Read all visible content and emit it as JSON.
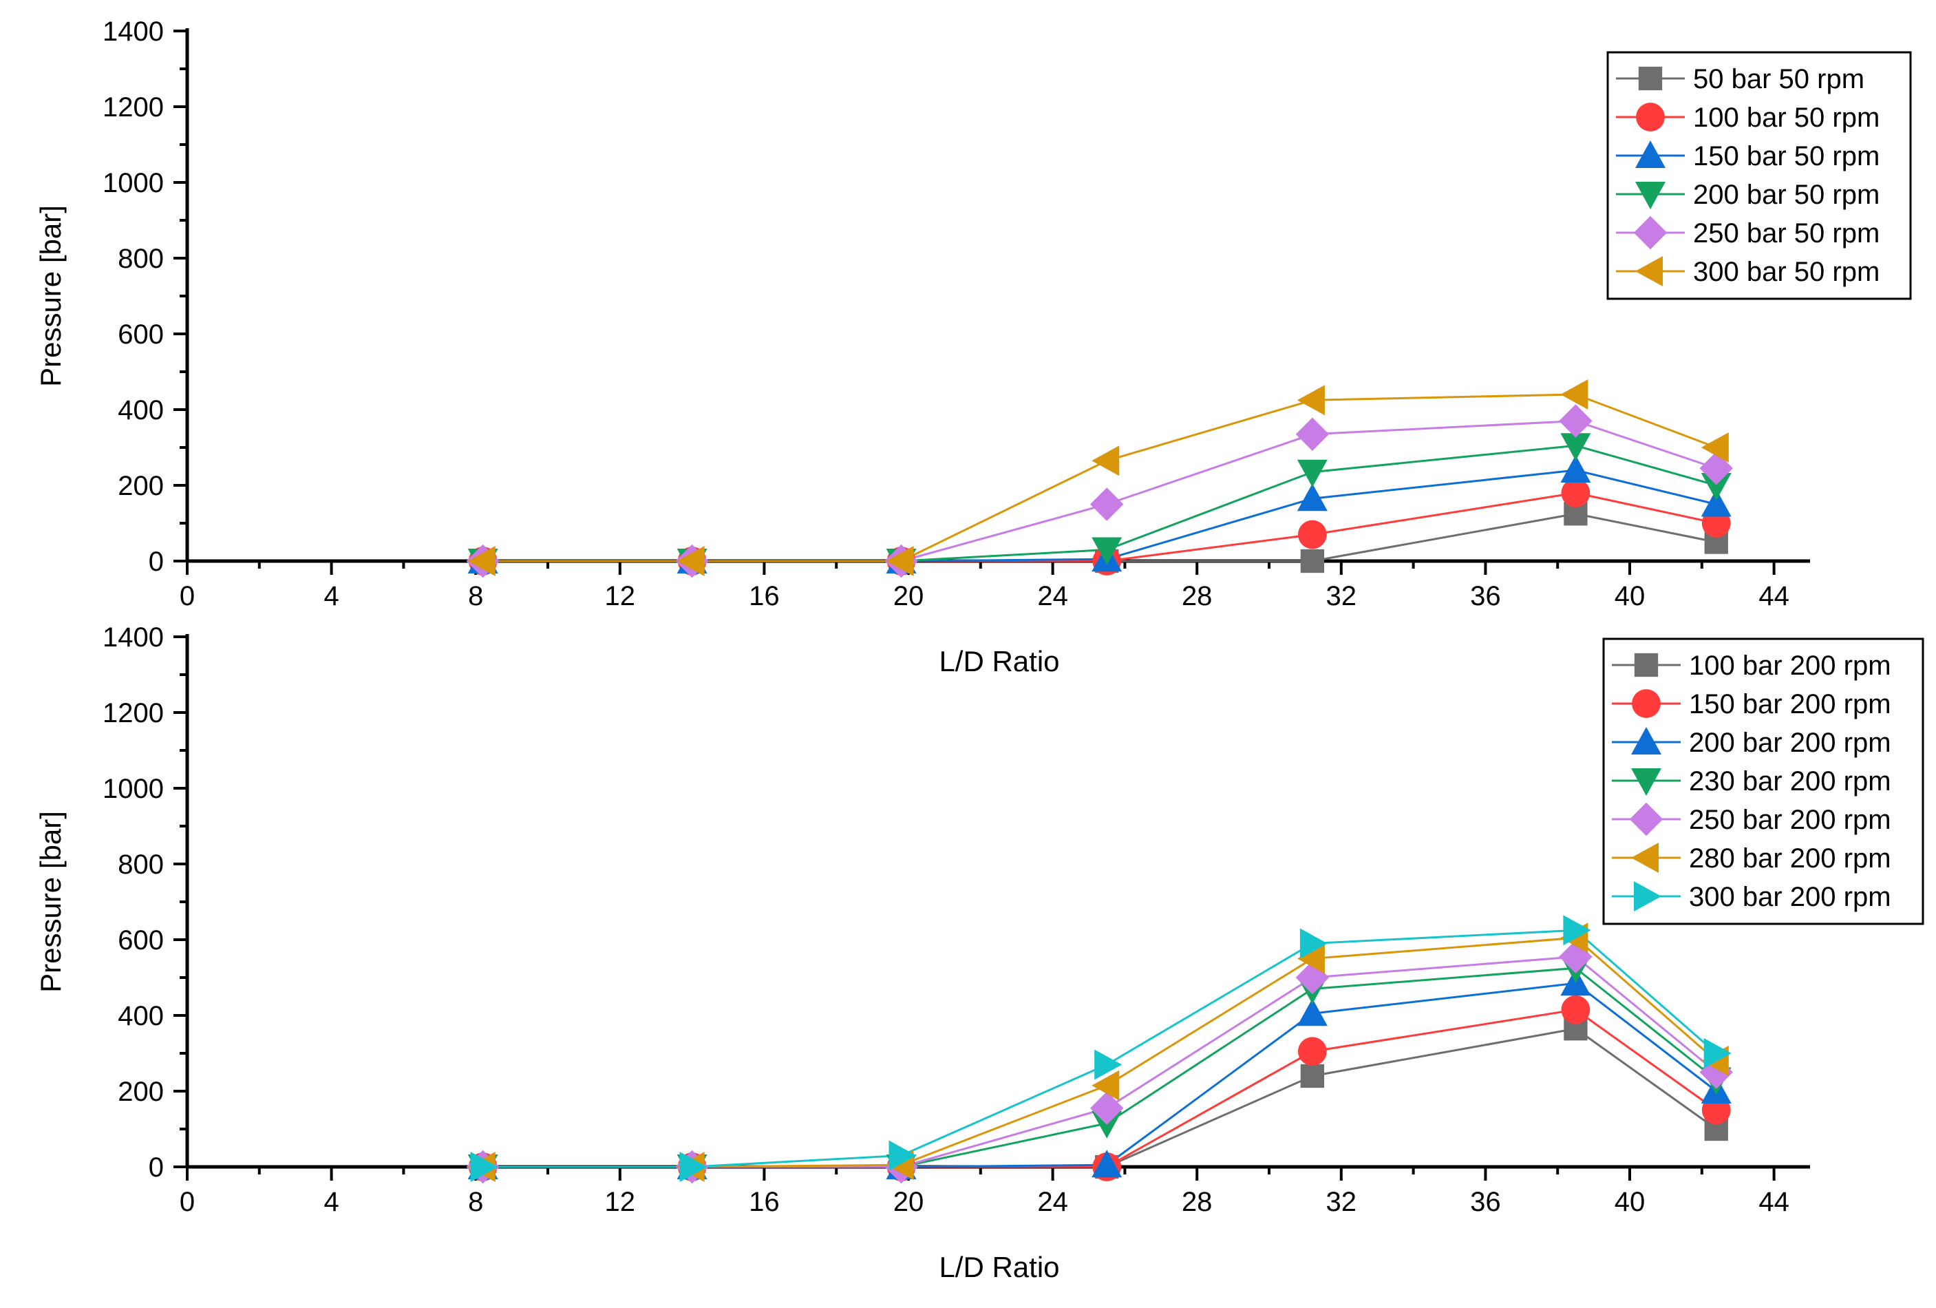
{
  "chart_data": [
    {
      "type": "line",
      "xlabel": "L/D Ratio",
      "ylabel": "Pressure [bar]",
      "xlim": [
        0,
        45
      ],
      "ylim": [
        0,
        1400
      ],
      "xticks": [
        0,
        4,
        8,
        12,
        16,
        20,
        24,
        28,
        32,
        36,
        40,
        44
      ],
      "yticks": [
        0,
        200,
        400,
        600,
        800,
        1000,
        1200,
        1400
      ],
      "x": [
        8.2,
        14,
        19.8,
        25.5,
        31.2,
        38.5,
        42.4
      ],
      "legend_position": "top-right",
      "series": [
        {
          "name": "50 bar 50 rpm",
          "marker": "square",
          "color": "#6e6e6e",
          "values": [
            0,
            0,
            0,
            0,
            0,
            125,
            50
          ]
        },
        {
          "name": "100 bar 50 rpm",
          "marker": "circle",
          "color": "#ff3b3b",
          "values": [
            0,
            0,
            0,
            0,
            70,
            180,
            100
          ]
        },
        {
          "name": "150 bar 50 rpm",
          "marker": "triangle-up",
          "color": "#0d6fd6",
          "values": [
            0,
            0,
            0,
            5,
            165,
            240,
            150
          ]
        },
        {
          "name": "200 bar 50 rpm",
          "marker": "triangle-down",
          "color": "#13a35e",
          "values": [
            0,
            0,
            0,
            30,
            235,
            305,
            200
          ]
        },
        {
          "name": "250 bar 50 rpm",
          "marker": "diamond",
          "color": "#c77ce6",
          "values": [
            0,
            0,
            0,
            150,
            335,
            370,
            245
          ]
        },
        {
          "name": "300 bar 50 rpm",
          "marker": "triangle-left",
          "color": "#d9960a",
          "values": [
            0,
            0,
            0,
            265,
            425,
            440,
            300
          ]
        }
      ]
    },
    {
      "type": "line",
      "xlabel": "L/D Ratio",
      "ylabel": "Pressure [bar]",
      "xlim": [
        0,
        45
      ],
      "ylim": [
        0,
        1400
      ],
      "xticks": [
        0,
        4,
        8,
        12,
        16,
        20,
        24,
        28,
        32,
        36,
        40,
        44
      ],
      "yticks": [
        0,
        200,
        400,
        600,
        800,
        1000,
        1200,
        1400
      ],
      "x": [
        8.2,
        14,
        19.8,
        25.5,
        31.2,
        38.5,
        42.4
      ],
      "legend_position": "top-right",
      "series": [
        {
          "name": "100 bar 200 rpm",
          "marker": "square",
          "color": "#6e6e6e",
          "values": [
            0,
            0,
            0,
            0,
            240,
            365,
            100
          ]
        },
        {
          "name": "150 bar 200 rpm",
          "marker": "circle",
          "color": "#ff3b3b",
          "values": [
            0,
            0,
            0,
            0,
            305,
            415,
            150
          ]
        },
        {
          "name": "200 bar 200 rpm",
          "marker": "triangle-up",
          "color": "#0d6fd6",
          "values": [
            0,
            0,
            0,
            5,
            405,
            485,
            200
          ]
        },
        {
          "name": "230 bar 200 rpm",
          "marker": "triangle-down",
          "color": "#13a35e",
          "values": [
            0,
            0,
            0,
            115,
            470,
            525,
            230
          ]
        },
        {
          "name": "250 bar 200 rpm",
          "marker": "diamond",
          "color": "#c77ce6",
          "values": [
            0,
            0,
            0,
            155,
            500,
            555,
            250
          ]
        },
        {
          "name": "280 bar 200 rpm",
          "marker": "triangle-left",
          "color": "#d9960a",
          "values": [
            0,
            0,
            5,
            215,
            550,
            605,
            280
          ]
        },
        {
          "name": "300 bar 200 rpm",
          "marker": "triangle-right",
          "color": "#17c4cc",
          "values": [
            0,
            0,
            30,
            270,
            590,
            625,
            300
          ]
        }
      ]
    }
  ]
}
